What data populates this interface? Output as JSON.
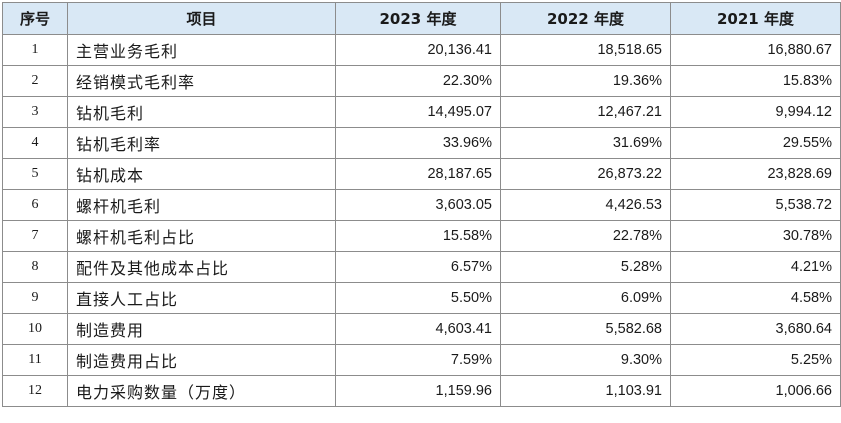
{
  "table": {
    "headers": [
      "序号",
      "项目",
      "2023 年度",
      "2022 年度",
      "2021 年度"
    ],
    "rows": [
      {
        "index": "1",
        "item": "主营业务毛利",
        "y2023": "20,136.41",
        "y2022": "18,518.65",
        "y2021": "16,880.67"
      },
      {
        "index": "2",
        "item": "经销模式毛利率",
        "y2023": "22.30%",
        "y2022": "19.36%",
        "y2021": "15.83%"
      },
      {
        "index": "3",
        "item": "钻机毛利",
        "y2023": "14,495.07",
        "y2022": "12,467.21",
        "y2021": "9,994.12"
      },
      {
        "index": "4",
        "item": "钻机毛利率",
        "y2023": "33.96%",
        "y2022": "31.69%",
        "y2021": "29.55%"
      },
      {
        "index": "5",
        "item": "钻机成本",
        "y2023": "28,187.65",
        "y2022": "26,873.22",
        "y2021": "23,828.69"
      },
      {
        "index": "6",
        "item": "螺杆机毛利",
        "y2023": "3,603.05",
        "y2022": "4,426.53",
        "y2021": "5,538.72"
      },
      {
        "index": "7",
        "item": "螺杆机毛利占比",
        "y2023": "15.58%",
        "y2022": "22.78%",
        "y2021": "30.78%"
      },
      {
        "index": "8",
        "item": "配件及其他成本占比",
        "y2023": "6.57%",
        "y2022": "5.28%",
        "y2021": "4.21%"
      },
      {
        "index": "9",
        "item": "直接人工占比",
        "y2023": "5.50%",
        "y2022": "6.09%",
        "y2021": "4.58%"
      },
      {
        "index": "10",
        "item": "制造费用",
        "y2023": "4,603.41",
        "y2022": "5,582.68",
        "y2021": "3,680.64"
      },
      {
        "index": "11",
        "item": "制造费用占比",
        "y2023": "7.59%",
        "y2022": "9.30%",
        "y2021": "5.25%"
      },
      {
        "index": "12",
        "item": "电力采购数量（万度）",
        "y2023": "1,159.96",
        "y2022": "1,103.91",
        "y2021": "1,006.66"
      }
    ]
  },
  "colors": {
    "header_background": "#d9e8f5",
    "border": "#8c8c8c",
    "text": "#1a1a1a"
  }
}
